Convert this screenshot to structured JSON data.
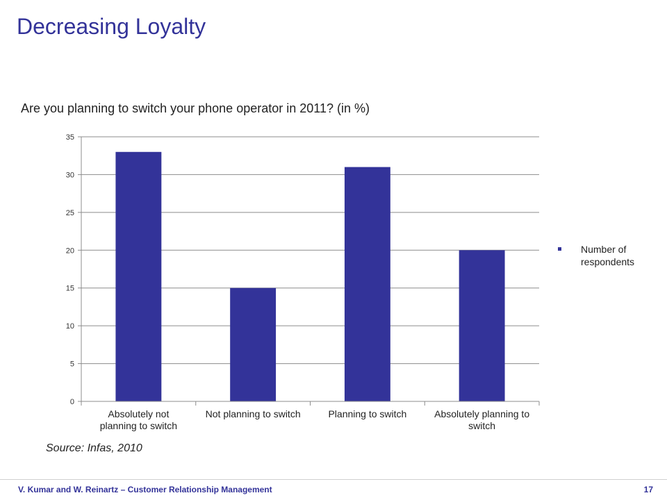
{
  "slide": {
    "title": "Decreasing Loyalty",
    "source": "Source: Infas, 2010",
    "footer_left": "V. Kumar and W. Reinartz – Customer Relationship Management",
    "page_number": "17"
  },
  "chart_data": {
    "type": "bar",
    "title": "Are you planning to switch your phone operator in 2011? (in %)",
    "categories": [
      [
        "Absolutely not",
        "planning to switch"
      ],
      [
        "Not planning to switch"
      ],
      [
        "Planning to switch"
      ],
      [
        "Absolutely planning to",
        "switch"
      ]
    ],
    "series": [
      {
        "name": "Number of respondents",
        "values": [
          33,
          15,
          31,
          20
        ],
        "color": "#333399"
      }
    ],
    "ylim": [
      0,
      35
    ],
    "yticks": [
      0,
      5,
      10,
      15,
      20,
      25,
      30,
      35
    ],
    "grid": true,
    "legend": "right"
  }
}
